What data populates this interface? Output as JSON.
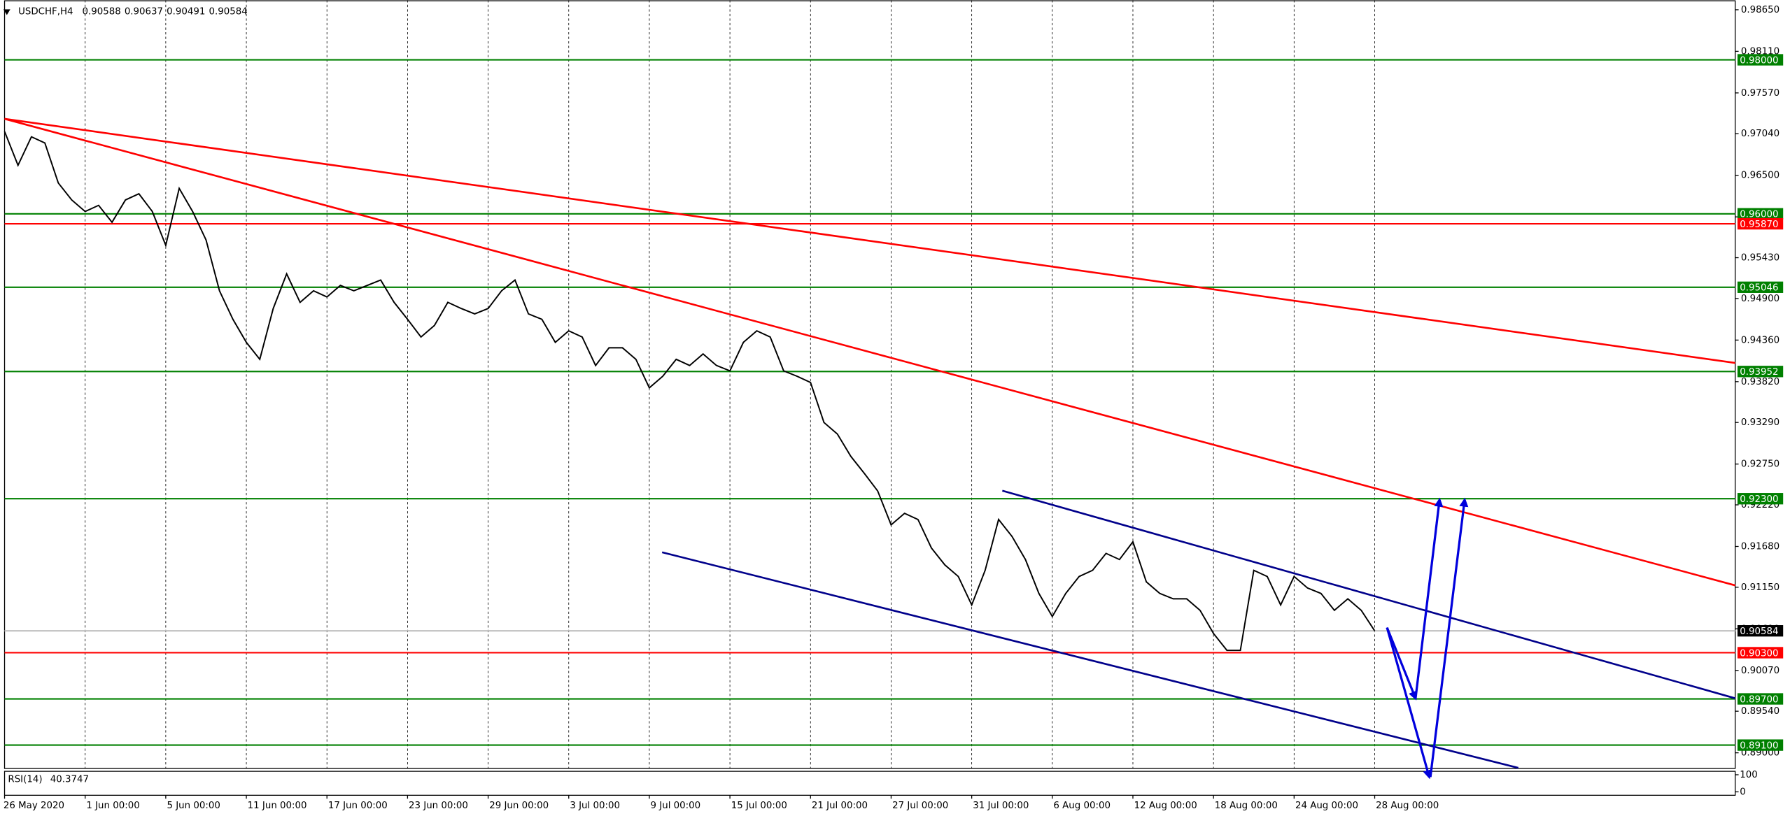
{
  "chart_data": {
    "type": "line",
    "title": "USDCHF,H4",
    "ohlc": [
      0.90588,
      0.90637,
      0.90491,
      0.90584
    ],
    "color": "#000000",
    "categories": [
      "26 May 2020",
      null,
      null,
      null,
      null,
      null,
      "1 Jun 00:00",
      null,
      null,
      null,
      null,
      null,
      "5 Jun 00:00",
      null,
      null,
      null,
      null,
      null,
      "11 Jun 00:00",
      null,
      null,
      null,
      null,
      null,
      "17 Jun 00:00",
      null,
      null,
      null,
      null,
      null,
      "23 Jun 00:00",
      null,
      null,
      null,
      null,
      null,
      "29 Jun 00:00",
      null,
      null,
      null,
      null,
      null,
      "3 Jul 00:00",
      null,
      null,
      null,
      null,
      null,
      "9 Jul 00:00",
      null,
      null,
      null,
      null,
      null,
      "15 Jul 00:00",
      null,
      null,
      null,
      null,
      null,
      "21 Jul 00:00",
      null,
      null,
      null,
      null,
      null,
      "27 Jul 00:00",
      null,
      null,
      null,
      null,
      null,
      "31 Jul 00:00",
      null,
      null,
      null,
      null,
      null,
      "6 Aug 00:00",
      null,
      null,
      null,
      null,
      null,
      "12 Aug 00:00",
      null,
      null,
      null,
      null,
      null,
      "18 Aug 00:00",
      null,
      null,
      null,
      null,
      null,
      "24 Aug 00:00",
      null,
      null,
      null,
      null,
      null,
      "28 Aug 00:00"
    ],
    "values": [
      0.9707,
      0.9663,
      0.97,
      0.9692,
      0.964,
      0.9618,
      0.9603,
      0.9611,
      0.9589,
      0.9618,
      0.9626,
      0.9603,
      0.9559,
      0.9633,
      0.9603,
      0.9566,
      0.95,
      0.9463,
      0.9433,
      0.9411,
      0.9477,
      0.9522,
      0.9485,
      0.95,
      0.9492,
      0.9507,
      0.95,
      0.9507,
      0.9514,
      0.9485,
      0.9463,
      0.944,
      0.9455,
      0.9485,
      0.9477,
      0.947,
      0.9477,
      0.95,
      0.9514,
      0.947,
      0.9463,
      0.9433,
      0.9448,
      0.944,
      0.9403,
      0.9426,
      0.9426,
      0.9411,
      0.9374,
      0.9389,
      0.9411,
      0.9403,
      0.9418,
      0.9403,
      0.9396,
      0.9433,
      0.9448,
      0.944,
      0.9396,
      0.9389,
      0.9381,
      0.9329,
      0.9314,
      0.9285,
      0.9263,
      0.924,
      0.9196,
      0.9211,
      0.9203,
      0.9166,
      0.9144,
      0.9129,
      0.9092,
      0.9137,
      0.9203,
      0.9181,
      0.9151,
      0.9107,
      0.9077,
      0.9107,
      0.9129,
      0.9137,
      0.9159,
      0.9151,
      0.9174,
      0.9122,
      0.9107,
      0.91,
      0.91,
      0.9085,
      0.9055,
      0.9033,
      0.9033,
      0.9137,
      0.9129,
      0.9092,
      0.9129,
      0.9114,
      0.9107,
      0.9085,
      0.91,
      0.9085,
      0.90584
    ],
    "ylim": [
      0.88804,
      0.98774
    ],
    "yticks": [
      {
        "value": 0.9865,
        "label": "0.98650"
      },
      {
        "value": 0.9811,
        "label": "0.98110"
      },
      {
        "value": 0.9757,
        "label": "0.97570"
      },
      {
        "value": 0.9704,
        "label": "0.97040"
      },
      {
        "value": 0.965,
        "label": "0.96500"
      },
      {
        "value": 0.9596,
        "label": "0.95960"
      },
      {
        "value": 0.9543,
        "label": "0.95430"
      },
      {
        "value": 0.949,
        "label": "0.94900"
      },
      {
        "value": 0.9436,
        "label": "0.94360"
      },
      {
        "value": 0.9382,
        "label": "0.93820"
      },
      {
        "value": 0.9329,
        "label": "0.93290"
      },
      {
        "value": 0.9275,
        "label": "0.92750"
      },
      {
        "value": 0.9222,
        "label": "0.92220"
      },
      {
        "value": 0.9168,
        "label": "0.91680"
      },
      {
        "value": 0.9115,
        "label": "0.91150"
      },
      {
        "value": 0.9061,
        "label": "0.90610"
      },
      {
        "value": 0.9007,
        "label": "0.90070"
      },
      {
        "value": 0.8954,
        "label": "0.89540"
      },
      {
        "value": 0.89,
        "label": "0.89000"
      }
    ],
    "grid": true,
    "levels": [
      {
        "value": 0.98,
        "label": "0.98000",
        "color": "#008000"
      },
      {
        "value": 0.96,
        "label": "0.96000",
        "color": "#008000"
      },
      {
        "value": 0.9587,
        "label": "0.95870",
        "color": "#ff0000"
      },
      {
        "value": 0.95046,
        "label": "0.95046",
        "color": "#008000"
      },
      {
        "value": 0.93952,
        "label": "0.93952",
        "color": "#008000"
      },
      {
        "value": 0.923,
        "label": "0.92300",
        "color": "#008000"
      },
      {
        "value": 0.90584,
        "label": "0.90584",
        "color": "#000000"
      },
      {
        "value": 0.903,
        "label": "0.90300",
        "color": "#ff0000"
      },
      {
        "value": 0.897,
        "label": "0.89700",
        "color": "#008000"
      },
      {
        "value": 0.891,
        "label": "0.89100",
        "color": "#008000"
      }
    ],
    "indicator": {
      "name": "RSI(14)",
      "value": 40.3747,
      "ylim": [
        0,
        100
      ],
      "yticks": [
        100,
        0
      ]
    }
  }
}
